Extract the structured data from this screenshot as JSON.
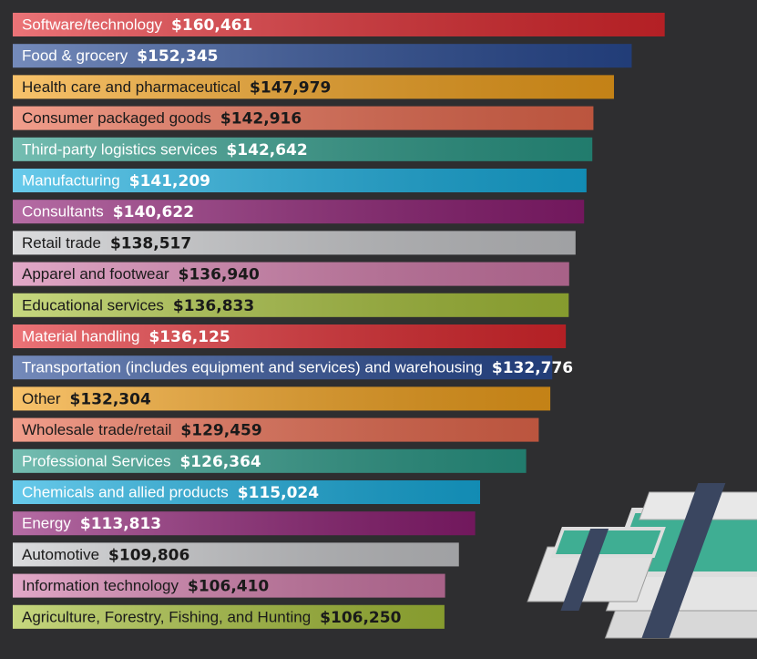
{
  "chart_data": {
    "type": "bar",
    "categories": [
      "Software/technology",
      "Food & grocery",
      "Health care and pharmaceutical",
      "Consumer packaged goods",
      "Third-party logistics services",
      "Manufacturing",
      "Consultants",
      "Retail trade",
      "Apparel and footwear",
      "Educational services",
      "Material handling",
      "Transportation (includes equipment and services) and warehousing",
      "Other",
      "Wholesale trade/retail",
      "Professional Services",
      "Chemicals and allied products",
      "Energy",
      "Automotive",
      "Information technology",
      "Agriculture, Forestry, Fishing, and Hunting"
    ],
    "values": [
      160461,
      152345,
      147979,
      142916,
      142642,
      141209,
      140622,
      138517,
      136940,
      136833,
      136125,
      132776,
      132304,
      129459,
      126364,
      115024,
      113813,
      109806,
      106410,
      106250
    ],
    "value_labels": [
      "$160,461",
      "$152,345",
      "$147,979",
      "$142,916",
      "$142,642",
      "$141,209",
      "$140,622",
      "$138,517",
      "$136,940",
      "$136,833",
      "$136,125",
      "$132,776",
      "$132,304",
      "$129,459",
      "$126,364",
      "$115,024",
      "$113,813",
      "$109,806",
      "$106,410",
      "$106,250"
    ],
    "colors": [
      "#e0282e",
      "#2a4c96",
      "#f4a21c",
      "#ea6a4e",
      "#2a9a88",
      "#17aee0",
      "#8e1e74",
      "#c8c9cc",
      "#d27aaa",
      "#a8c23a",
      "#e0282e",
      "#2a4c96",
      "#f4a21c",
      "#ea6a4e",
      "#2a9a88",
      "#17aee0",
      "#8e1e74",
      "#c8c9cc",
      "#d27aaa",
      "#a8c23a"
    ]
  }
}
